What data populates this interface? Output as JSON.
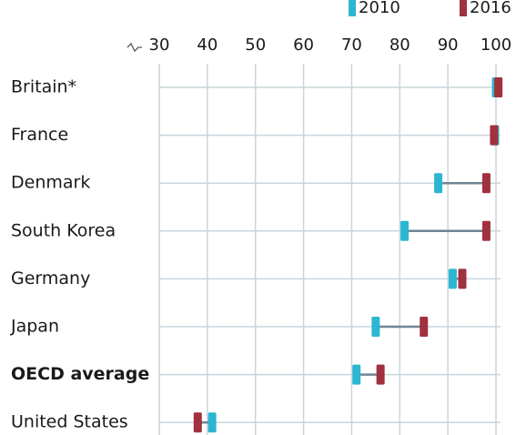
{
  "chart_data": {
    "type": "dumbbell",
    "categories": [
      "Britain*",
      "France",
      "Denmark",
      "South Korea",
      "Germany",
      "Japan",
      "OECD average",
      "United States"
    ],
    "series": [
      {
        "name": "2010",
        "color": "#2cb6d2",
        "values": [
          100,
          99.8,
          88,
          81,
          91,
          75,
          71,
          41
        ]
      },
      {
        "name": "2016",
        "color": "#a0313f",
        "values": [
          100.5,
          99.6,
          98,
          98,
          93,
          85,
          76,
          38
        ]
      }
    ],
    "xlim": [
      30,
      100
    ],
    "xticks": [
      30,
      40,
      50,
      60,
      70,
      80,
      90,
      100
    ],
    "grid": true,
    "legend": "top-right"
  }
}
